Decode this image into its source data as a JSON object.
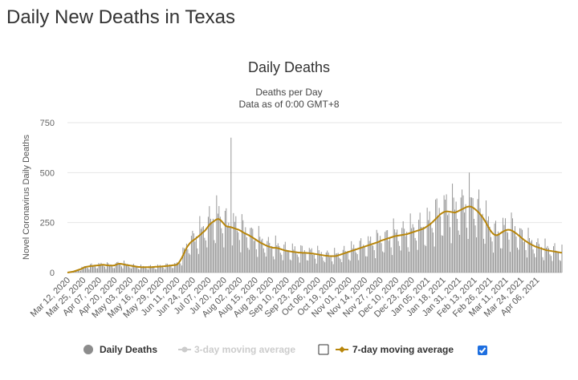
{
  "page": {
    "title": "Daily New Deaths in Texas"
  },
  "colors": {
    "bars": "#8c8c8c",
    "ma7": "#b8860b",
    "ma3_disabled": "#cccccc",
    "checkbox": "#1e6fe0"
  },
  "chart_data": {
    "type": "bar",
    "title": "Daily Deaths",
    "subtitle_lines": [
      "Deaths per Day",
      "Data as of 0:00 GMT+8"
    ],
    "ylabel": "Novel Coronavirus Daily Deaths",
    "ylim": [
      0,
      750
    ],
    "yticks": [
      "0",
      "250",
      "500",
      "750"
    ],
    "grid": true,
    "legend_position": "bottom",
    "start_date": "2020-03-12",
    "xtick_labels": [
      "Mar 12, 2020",
      "Mar 25, 2020",
      "Apr 07, 2020",
      "Apr 20, 2020",
      "May 03, 2020",
      "May 16, 2020",
      "May 29, 2020",
      "Jun 11, 2020",
      "Jun 24, 2020",
      "Jul 07, 2020",
      "Jul 20, 2020",
      "Aug 02, 2020",
      "Aug 15, 2020",
      "Aug 28, 2020",
      "Sep 10, 2020",
      "Sep 23, 2020",
      "Oct 06, 2020",
      "Oct 19, 2020",
      "Nov 01, 2020",
      "Nov 14, 2020",
      "Nov 27, 2020",
      "Dec 10, 2020",
      "Dec 23, 2020",
      "Jan 05, 2021",
      "Jan 18, 2021",
      "Jan 31, 2021",
      "Feb 13, 2021",
      "Feb 26, 2021",
      "Mar 11, 2021",
      "Mar 24, 2021",
      "Apr 06, 2021"
    ],
    "series": [
      {
        "name": "Daily Deaths",
        "kind": "bar"
      },
      {
        "name": "3-day moving average",
        "kind": "line",
        "visible": false
      },
      {
        "name": "7-day moving average",
        "kind": "line",
        "visible": true,
        "values": [
          0,
          1,
          2,
          3,
          4,
          5,
          7,
          9,
          11,
          13,
          15,
          17,
          20,
          23,
          26,
          28,
          29,
          30,
          31,
          32,
          33,
          33,
          34,
          35,
          35,
          36,
          36,
          37,
          38,
          39,
          39,
          38,
          37,
          36,
          36,
          35,
          35,
          35,
          35,
          36,
          38,
          41,
          43,
          44,
          44,
          43,
          42,
          40,
          39,
          38,
          37,
          36,
          35,
          34,
          33,
          32,
          31,
          30,
          29,
          28,
          28,
          27,
          27,
          27,
          27,
          27,
          27,
          27,
          27,
          27,
          27,
          28,
          28,
          29,
          29,
          29,
          30,
          30,
          30,
          31,
          31,
          32,
          33,
          33,
          34,
          35,
          35,
          36,
          37,
          37,
          38,
          40,
          45,
          53,
          62,
          73,
          85,
          98,
          111,
          123,
          133,
          141,
          148,
          154,
          159,
          163,
          167,
          172,
          177,
          182,
          187,
          192,
          198,
          203,
          208,
          215,
          223,
          231,
          239,
          245,
          250,
          254,
          258,
          263,
          266,
          268,
          267,
          264,
          258,
          251,
          244,
          237,
          232,
          230,
          229,
          228,
          227,
          225,
          223,
          221,
          219,
          217,
          215,
          212,
          209,
          205,
          201,
          198,
          195,
          192,
          189,
          186,
          182,
          179,
          175,
          171,
          167,
          163,
          159,
          155,
          151,
          148,
          145,
          142,
          139,
          136,
          133,
          131,
          129,
          127,
          125,
          124,
          124,
          124,
          123,
          122,
          120,
          118,
          116,
          114,
          112,
          110,
          109,
          108,
          107,
          106,
          105,
          104,
          103,
          103,
          102,
          101,
          100,
          100,
          100,
          99,
          99,
          99,
          99,
          98,
          98,
          97,
          96,
          95,
          95,
          94,
          93,
          92,
          91,
          90,
          89,
          88,
          87,
          86,
          85,
          84,
          84,
          83,
          82,
          82,
          82,
          82,
          82,
          83,
          84,
          86,
          88,
          90,
          92,
          94,
          96,
          98,
          100,
          102,
          104,
          106,
          108,
          110,
          112,
          114,
          116,
          118,
          120,
          122,
          124,
          126,
          128,
          130,
          132,
          134,
          136,
          138,
          140,
          142,
          144,
          146,
          148,
          150,
          152,
          155,
          158,
          160,
          162,
          164,
          166,
          168,
          170,
          172,
          174,
          176,
          178,
          180,
          182,
          183,
          184,
          185,
          186,
          187,
          188,
          189,
          190,
          191,
          192,
          194,
          196,
          198,
          200,
          202,
          204,
          206,
          208,
          210,
          212,
          214,
          216,
          218,
          220,
          224,
          228,
          232,
          236,
          240,
          245,
          250,
          256,
          262,
          268,
          274,
          280,
          286,
          292,
          296,
          300,
          303,
          305,
          306,
          306,
          305,
          304,
          303,
          302,
          301,
          300,
          302,
          305,
          308,
          311,
          314,
          317,
          320,
          323,
          326,
          328,
          330,
          331,
          330,
          328,
          325,
          321,
          316,
          311,
          305,
          299,
          292,
          285,
          277,
          268,
          258,
          248,
          237,
          226,
          216,
          207,
          199,
          193,
          189,
          187,
          187,
          189,
          193,
          197,
          201,
          205,
          208,
          211,
          213,
          214,
          214,
          213,
          211,
          208,
          204,
          200,
          196,
          191,
          186,
          181,
          176,
          171,
          166,
          161,
          157,
          153,
          149,
          145,
          142,
          139,
          136,
          133,
          130,
          128,
          126,
          124,
          122,
          120,
          118,
          116,
          114,
          112,
          111,
          110,
          109,
          108,
          107,
          106,
          105,
          104,
          103,
          102,
          101,
          100,
          100
        ]
      }
    ]
  },
  "legend": {
    "items": [
      {
        "label": "Daily Deaths",
        "color": "#8c8c8c"
      },
      {
        "label": "3-day moving average",
        "color": "#cccccc"
      },
      {
        "label": "7-day moving average",
        "color": "#b8860b"
      }
    ],
    "checkbox_3day_checked": false,
    "checkbox_7day_checked": true
  }
}
